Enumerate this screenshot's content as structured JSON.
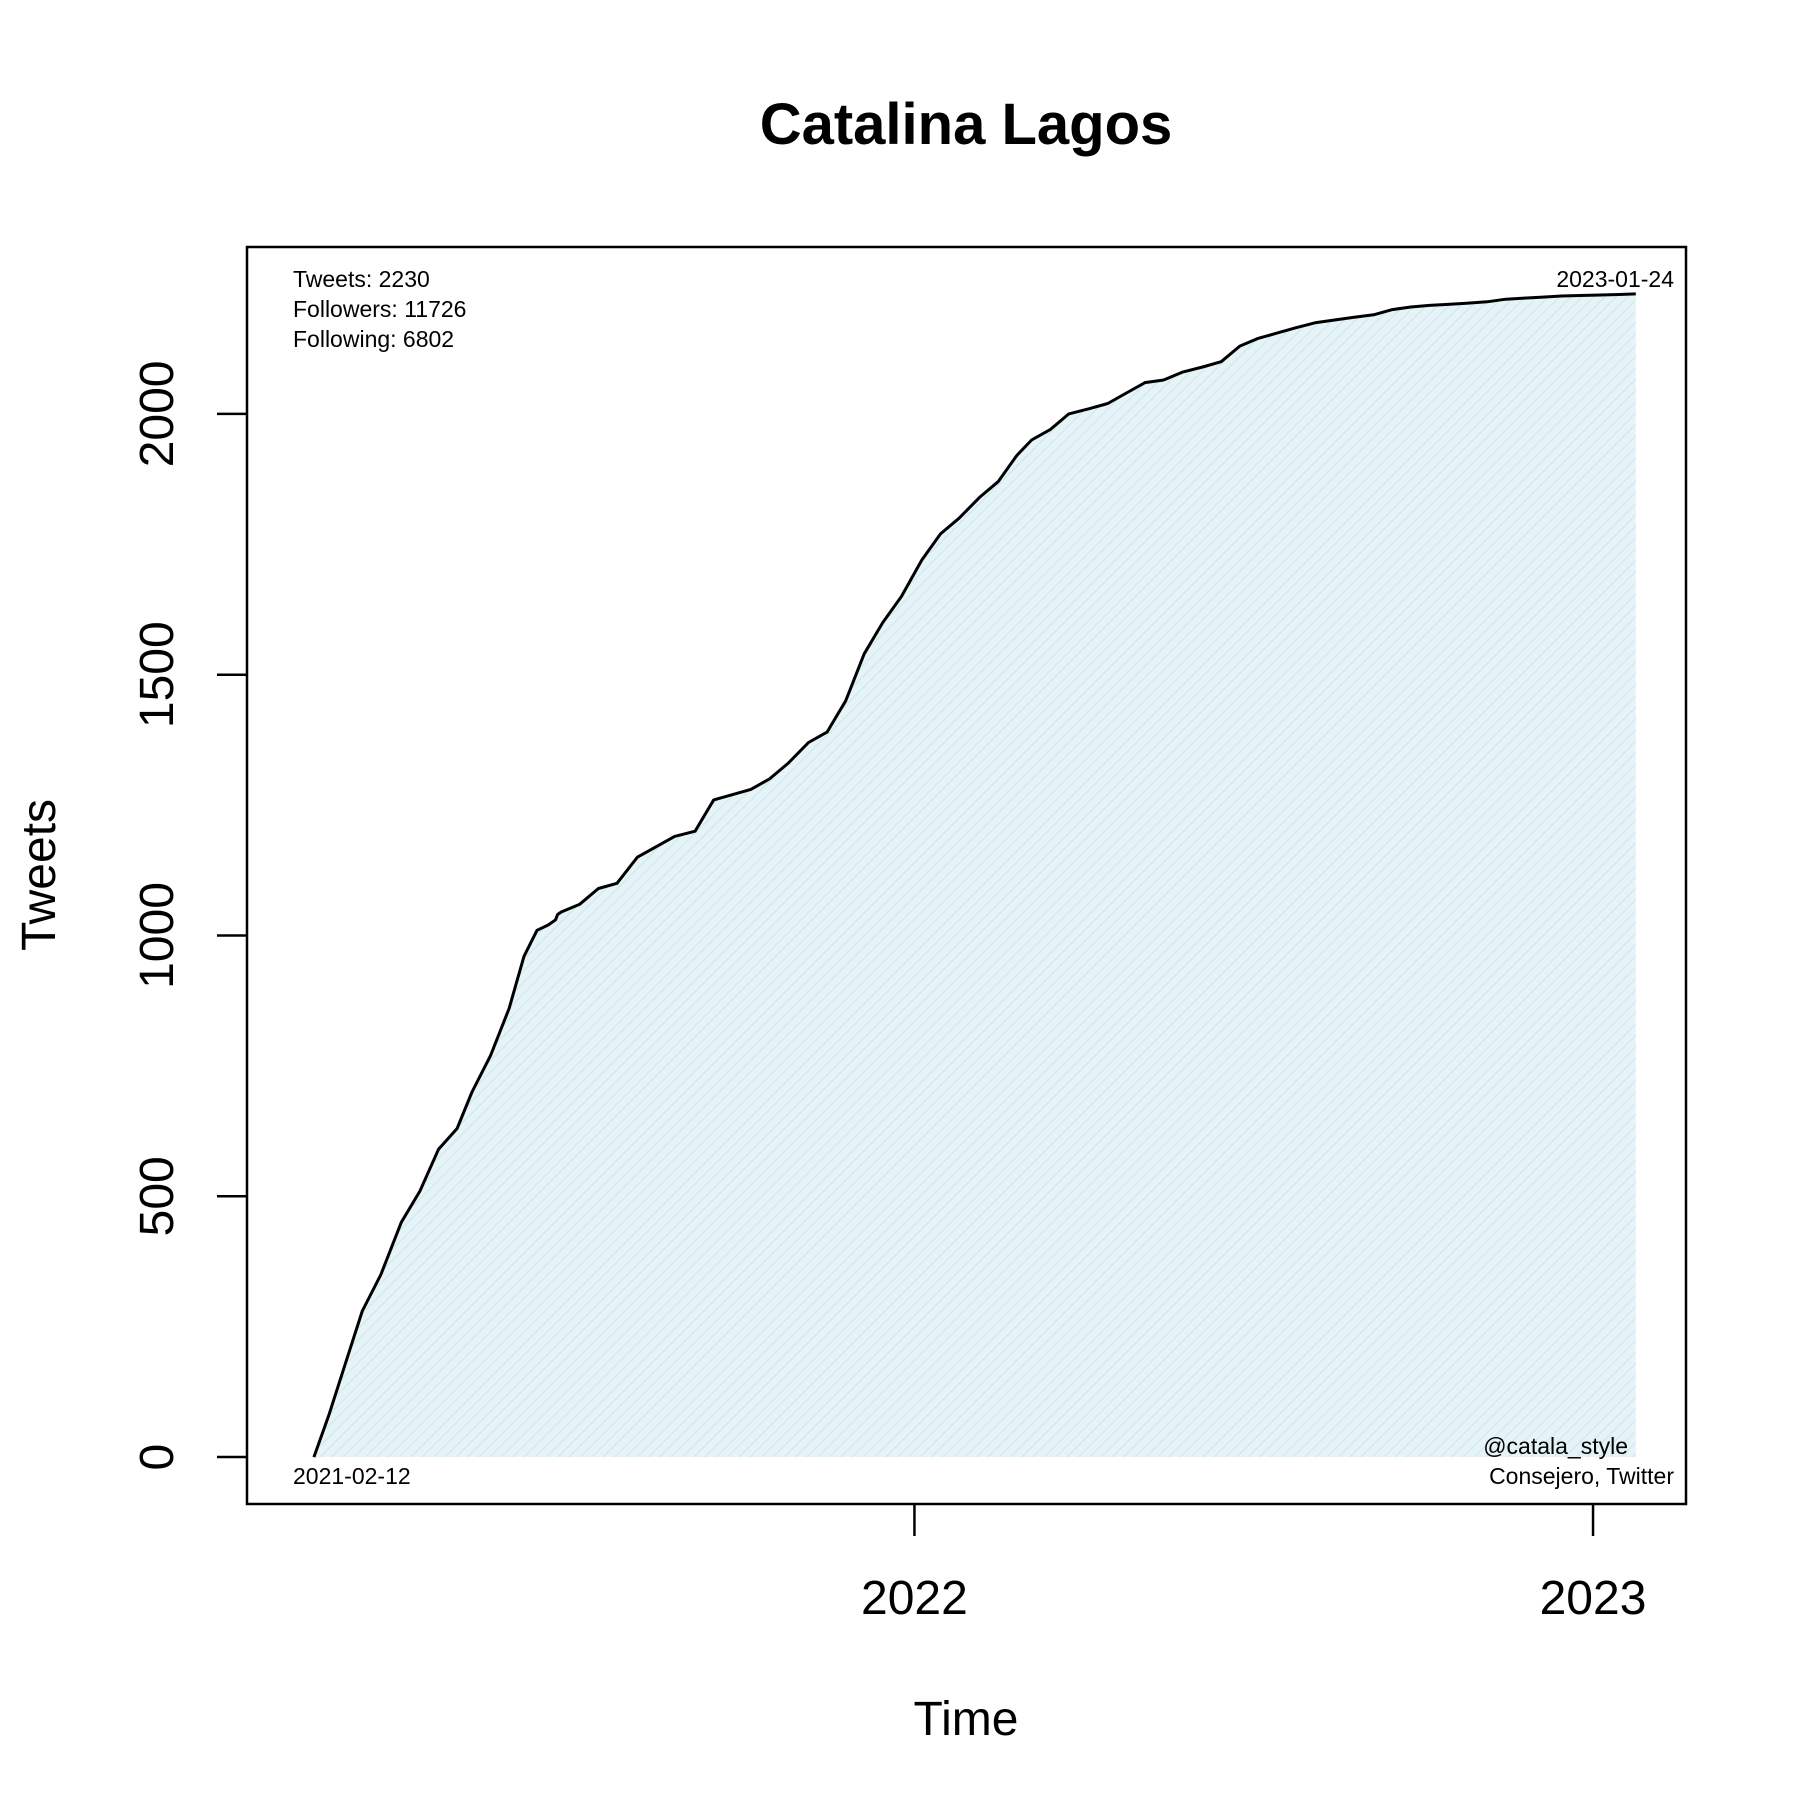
{
  "chart_data": {
    "type": "area",
    "title": "Catalina Lagos",
    "xlabel": "Time",
    "ylabel": "Tweets",
    "x_ticks": [
      {
        "date": "2022-01-01",
        "label": "2022"
      },
      {
        "date": "2023-01-01",
        "label": "2023"
      }
    ],
    "y_ticks": [
      0,
      500,
      1000,
      1500,
      2000
    ],
    "xlim": [
      "2021-01-07",
      "2023-02-20"
    ],
    "ylim": [
      -90,
      2320
    ],
    "grid": false,
    "legend": "none",
    "colors": {
      "line": "#000000",
      "fill": "#e6f4f8",
      "hatch": "#d4eaf1",
      "frame": "#000000"
    },
    "annotations": {
      "top_left": [
        "Tweets: 2230",
        "Followers: 11726",
        "Following: 6802"
      ],
      "top_right": "2023-01-24",
      "bottom_left": "2021-02-12",
      "bottom_right": [
        "@catala_style",
        "Consejero, Twitter"
      ]
    },
    "series": [
      {
        "x": [
          "2021-02-12",
          "2021-02-20",
          "2021-03-01",
          "2021-03-10",
          "2021-03-20",
          "2021-03-31",
          "2021-04-10",
          "2021-04-20",
          "2021-04-30",
          "2021-05-08",
          "2021-05-18",
          "2021-05-28",
          "2021-06-05",
          "2021-06-12",
          "2021-06-18",
          "2021-06-22",
          "2021-06-23",
          "2021-06-25",
          "2021-07-05",
          "2021-07-15",
          "2021-07-25",
          "2021-08-05",
          "2021-08-15",
          "2021-08-25",
          "2021-09-05",
          "2021-09-15",
          "2021-09-25",
          "2021-10-05",
          "2021-10-15",
          "2021-10-25",
          "2021-11-05",
          "2021-11-15",
          "2021-11-20",
          "2021-11-25",
          "2021-12-05",
          "2021-12-15",
          "2021-12-25",
          "2022-01-05",
          "2022-01-15",
          "2022-01-25",
          "2022-02-05",
          "2022-02-15",
          "2022-02-25",
          "2022-03-05",
          "2022-03-15",
          "2022-03-25",
          "2022-04-05",
          "2022-04-15",
          "2022-04-25",
          "2022-05-05",
          "2022-05-15",
          "2022-05-25",
          "2022-06-05",
          "2022-06-15",
          "2022-06-25",
          "2022-07-05",
          "2022-07-15",
          "2022-07-25",
          "2022-08-05",
          "2022-08-15",
          "2022-08-25",
          "2022-09-05",
          "2022-09-15",
          "2022-09-25",
          "2022-10-05",
          "2022-10-15",
          "2022-10-25",
          "2022-11-05",
          "2022-11-15",
          "2022-11-25",
          "2022-12-05",
          "2022-12-15",
          "2022-12-25",
          "2023-01-05",
          "2023-01-15",
          "2023-01-24"
        ],
        "y": [
          0,
          80,
          180,
          280,
          350,
          450,
          510,
          590,
          630,
          700,
          770,
          860,
          960,
          1010,
          1020,
          1030,
          1040,
          1045,
          1060,
          1090,
          1100,
          1150,
          1170,
          1190,
          1200,
          1260,
          1270,
          1280,
          1300,
          1330,
          1370,
          1390,
          1420,
          1450,
          1540,
          1600,
          1650,
          1720,
          1770,
          1800,
          1840,
          1870,
          1920,
          1950,
          1970,
          2000,
          2010,
          2020,
          2040,
          2060,
          2065,
          2080,
          2090,
          2100,
          2130,
          2145,
          2155,
          2165,
          2175,
          2180,
          2185,
          2190,
          2200,
          2205,
          2208,
          2210,
          2212,
          2215,
          2220,
          2222,
          2224,
          2226,
          2227,
          2228,
          2229,
          2230
        ]
      }
    ]
  }
}
